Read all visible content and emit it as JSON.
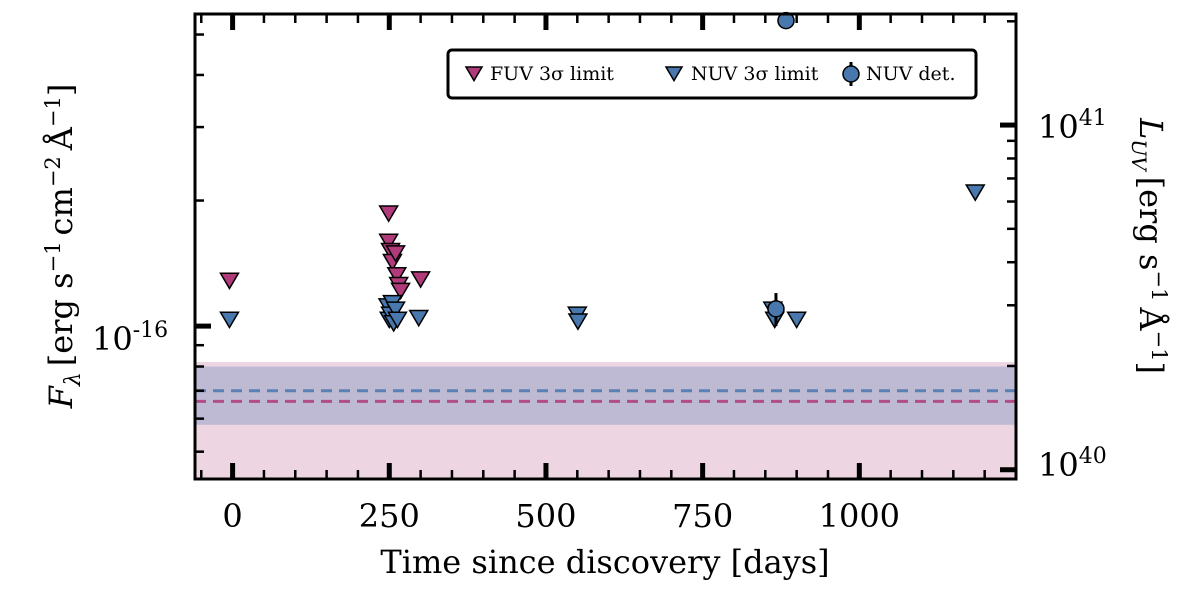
{
  "chart_data": {
    "type": "scatter",
    "xlabel": "Time since discovery [days]",
    "ylabel_parts": {
      "F": "F",
      "lambda": "λ",
      "units": "[erg s",
      "exp1": "−1",
      "cm": "cm",
      "exp2": "−2",
      "angstrom": "Å",
      "exp3": "−1",
      "close": "]"
    },
    "ylabel_right_parts": {
      "L": "L",
      "sub": "UV",
      "units": "[erg s",
      "exp1": "−1",
      "angstrom": "Å",
      "exp2": "−1",
      "close": "]"
    },
    "x_ticks": [
      0,
      250,
      500,
      750,
      1000
    ],
    "x_tick_labels": [
      "0",
      "250",
      "500",
      "750",
      "1000"
    ],
    "xlim": [
      -60,
      1250
    ],
    "y_scale": "log",
    "ylim": [
      4.3e-17,
      5.6e-16
    ],
    "y_tick_label": {
      "base": "10",
      "exp": "-16"
    },
    "y2_scale": "log",
    "y2lim": [
      9.4e+39,
      2.1e+41
    ],
    "y2_tick_labels": [
      {
        "base": "10",
        "exp": "41",
        "value": 1e+41
      },
      {
        "base": "10",
        "exp": "40",
        "value": 1e+40
      }
    ],
    "legend": {
      "position": "top-right",
      "entries": [
        {
          "label": "FUV 3σ limit",
          "marker": "triangle-down",
          "color": "#b03a7a"
        },
        {
          "label": "NUV 3σ limit",
          "marker": "triangle-down",
          "color": "#4878ae"
        },
        {
          "label": "NUV det.",
          "marker": "circle-errorbar",
          "color": "#4878ae"
        }
      ]
    },
    "series": [
      {
        "name": "FUV 3σ limit",
        "color": "#b03a7a",
        "marker": "triangle-down",
        "points": [
          {
            "x": -5,
            "y": 1.29e-16
          },
          {
            "x": 249,
            "y": 1.87e-16
          },
          {
            "x": 249,
            "y": 1.6e-16
          },
          {
            "x": 252,
            "y": 1.52e-16
          },
          {
            "x": 255,
            "y": 1.43e-16
          },
          {
            "x": 260,
            "y": 1.5e-16
          },
          {
            "x": 262,
            "y": 1.33e-16
          },
          {
            "x": 265,
            "y": 1.26e-16
          },
          {
            "x": 268,
            "y": 1.22e-16
          },
          {
            "x": 300,
            "y": 1.3e-16
          }
        ]
      },
      {
        "name": "NUV 3σ limit",
        "color": "#4878ae",
        "marker": "triangle-down",
        "points": [
          {
            "x": -5,
            "y": 1.04e-16
          },
          {
            "x": 248,
            "y": 1.12e-16
          },
          {
            "x": 250,
            "y": 1.04e-16
          },
          {
            "x": 252,
            "y": 1.07e-16
          },
          {
            "x": 255,
            "y": 1.14e-16
          },
          {
            "x": 257,
            "y": 1.02e-16
          },
          {
            "x": 260,
            "y": 1.1e-16
          },
          {
            "x": 263,
            "y": 1.04e-16
          },
          {
            "x": 297,
            "y": 1.05e-16
          },
          {
            "x": 550,
            "y": 1.07e-16
          },
          {
            "x": 551,
            "y": 1.03e-16
          },
          {
            "x": 862,
            "y": 1.1e-16
          },
          {
            "x": 865,
            "y": 1.04e-16
          },
          {
            "x": 900,
            "y": 1.04e-16
          },
          {
            "x": 1185,
            "y": 2.1e-16
          }
        ]
      },
      {
        "name": "NUV det.",
        "color": "#4878ae",
        "marker": "circle-errorbar",
        "points": [
          {
            "x": 867,
            "y": 1.1e-16,
            "yerr": 1e-17
          },
          {
            "x": 883,
            "y": 5.4e-16,
            "yerr": 0
          }
        ]
      }
    ],
    "bands": [
      {
        "color": "#e7c3d6",
        "ymin": 4.3e-17,
        "ymax": 8.2e-17,
        "line_y": 6.6e-17,
        "line_color": "#b03a7a"
      },
      {
        "color": "#9fa8cc",
        "ymin": 5.8e-17,
        "ymax": 8e-17,
        "line_y": 7e-17,
        "line_color": "#4878ae"
      }
    ]
  }
}
